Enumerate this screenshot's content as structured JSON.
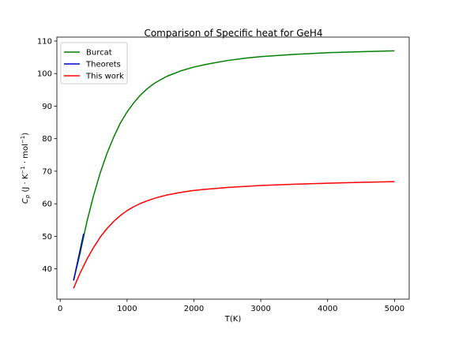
{
  "chart_data": {
    "type": "line",
    "title": "Comparison of Specific heat for GeH4",
    "xlabel": "T(K)",
    "ylabel": "Cp (J·K⁻¹·mol⁻¹)",
    "ylabel_parts": {
      "sym": "C",
      "sub": "p",
      "open": " (J · K",
      "exp1": "−1",
      "mid": " · mol",
      "exp2": "−1",
      "close": ")"
    },
    "xlim": [
      -50,
      5220
    ],
    "ylim": [
      30.7,
      111.2
    ],
    "xticks": [
      0,
      1000,
      2000,
      3000,
      4000,
      5000
    ],
    "yticks": [
      40,
      50,
      60,
      70,
      80,
      90,
      100,
      110
    ],
    "grid": false,
    "legend_position": "top-left",
    "series": [
      {
        "name": "Burcat",
        "color": "#008000",
        "x": [
          200,
          300,
          350,
          400,
          500,
          600,
          700,
          800,
          900,
          1000,
          1100,
          1200,
          1300,
          1400,
          1500,
          1600,
          1800,
          2000,
          2200,
          2500,
          2800,
          3000,
          3500,
          4000,
          4500,
          5000
        ],
        "y": [
          36.5,
          45.0,
          49.8,
          54.6,
          62.6,
          69.6,
          75.5,
          80.5,
          84.8,
          88.2,
          91.0,
          93.4,
          95.3,
          96.9,
          98.1,
          99.2,
          100.8,
          102.0,
          102.9,
          104.0,
          104.8,
          105.2,
          105.9,
          106.4,
          106.7,
          107.0
        ]
      },
      {
        "name": "Theorets",
        "color": "#0000cc",
        "x": [
          200,
          250,
          300,
          350
        ],
        "y": [
          36.4,
          41.2,
          46.0,
          50.8
        ]
      },
      {
        "name": "This work",
        "color": "#ff0000",
        "x": [
          200,
          250,
          300,
          400,
          500,
          600,
          700,
          800,
          900,
          1000,
          1100,
          1200,
          1300,
          1400,
          1500,
          1600,
          1800,
          2000,
          2200,
          2500,
          3000,
          3500,
          4000,
          4500,
          5000
        ],
        "y": [
          34.0,
          36.5,
          38.8,
          43.0,
          46.6,
          49.8,
          52.4,
          54.6,
          56.4,
          57.9,
          59.1,
          60.1,
          60.9,
          61.6,
          62.2,
          62.7,
          63.5,
          64.1,
          64.5,
          65.0,
          65.6,
          66.0,
          66.3,
          66.6,
          66.8
        ]
      }
    ]
  }
}
